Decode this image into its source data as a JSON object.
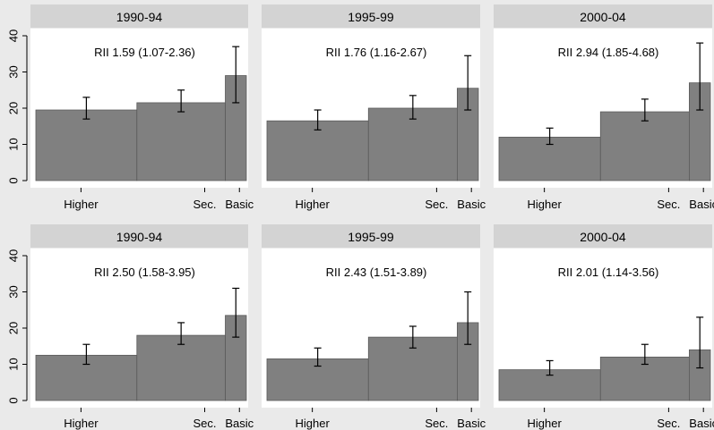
{
  "chart_data": {
    "type": "bar",
    "layout": "2 rows x 3 panels, shared y-axis per row",
    "ylim": [
      0,
      40
    ],
    "yticks": [
      0,
      10,
      20,
      30,
      40
    ],
    "xticklabels": [
      "Higher",
      "Sec.",
      "Basic"
    ],
    "category_shares": [
      0.48,
      0.42,
      0.1
    ],
    "colors": {
      "bar": "#808080",
      "bar_edge": "#5a5a5a",
      "strip": "#d3d3d3",
      "panel": "#ffffff",
      "background": "#eaeaea",
      "error_bar": "#000000"
    },
    "grid": false,
    "rows": [
      {
        "panels": [
          {
            "title": "1990-94",
            "annotation": "RII 1.59 (1.07-2.36)",
            "values": [
              19.5,
              21.5,
              29
            ],
            "ci_low": [
              17,
              19,
              21.5
            ],
            "ci_high": [
              23,
              25,
              37
            ]
          },
          {
            "title": "1995-99",
            "annotation": "RII 1.76 (1.16-2.67)",
            "values": [
              16.5,
              20,
              25.5
            ],
            "ci_low": [
              14,
              17,
              19.5
            ],
            "ci_high": [
              19.5,
              23.5,
              34.5
            ]
          },
          {
            "title": "2000-04",
            "annotation": "RII 2.94 (1.85-4.68)",
            "values": [
              12,
              19,
              27
            ],
            "ci_low": [
              10,
              16.5,
              19.5
            ],
            "ci_high": [
              14.5,
              22.5,
              38
            ]
          }
        ]
      },
      {
        "panels": [
          {
            "title": "1990-94",
            "annotation": "RII 2.50 (1.58-3.95)",
            "values": [
              12.5,
              18,
              23.5
            ],
            "ci_low": [
              10,
              15.5,
              17.5
            ],
            "ci_high": [
              15.5,
              21.5,
              31
            ]
          },
          {
            "title": "1995-99",
            "annotation": "RII 2.43 (1.51-3.89)",
            "values": [
              11.5,
              17.5,
              21.5
            ],
            "ci_low": [
              9.5,
              14.5,
              15.5
            ],
            "ci_high": [
              14.5,
              20.5,
              30
            ]
          },
          {
            "title": "2000-04",
            "annotation": "RII 2.01 (1.14-3.56)",
            "values": [
              8.5,
              12,
              14
            ],
            "ci_low": [
              7,
              10,
              9
            ],
            "ci_high": [
              11,
              15.5,
              23
            ]
          }
        ]
      }
    ]
  }
}
